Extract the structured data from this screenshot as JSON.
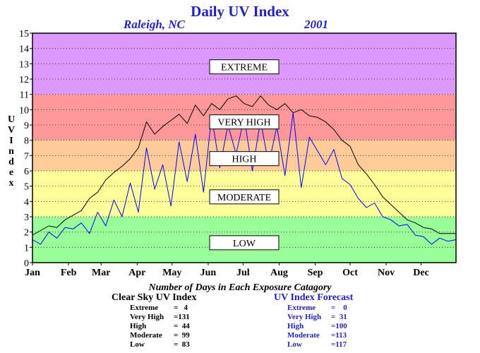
{
  "title": "Daily UV Index",
  "subtitle_location": "Raleigh, NC",
  "subtitle_year": "2001",
  "ylabel_letters": [
    "U",
    "V",
    "",
    "I",
    "n",
    "d",
    "e",
    "x"
  ],
  "caption": "Number of Days in Each Exposure Catagory",
  "colors": {
    "extreme": "#dd99ff",
    "very_high": "#ff9999",
    "high": "#ffcc99",
    "moderate": "#ffff99",
    "low": "#99ff99",
    "clear_sky_line": "#000000",
    "forecast_line": "#0000ff",
    "accent": "#1f1fd6"
  },
  "clear_sky_stats": {
    "title": "Clear Sky UV Index",
    "rows": [
      {
        "label": "Extreme",
        "value": "=   4"
      },
      {
        "label": "Very High",
        "value": "=131"
      },
      {
        "label": "High",
        "value": "=  44"
      },
      {
        "label": "Moderate",
        "value": "=  99"
      },
      {
        "label": "Low",
        "value": "=  83"
      }
    ]
  },
  "forecast_stats": {
    "title": "UV Index Forecast",
    "rows": [
      {
        "label": "Extreme",
        "value": "=    0"
      },
      {
        "label": "Very High",
        "value": "=  31"
      },
      {
        "label": "High",
        "value": "=100"
      },
      {
        "label": "Moderate",
        "value": "=113"
      },
      {
        "label": "Low",
        "value": "=117"
      }
    ]
  },
  "chart_data": {
    "type": "line",
    "title": "Daily UV Index",
    "subtitle": "Raleigh, NC 2001",
    "xlabel": "",
    "ylabel": "UV Index",
    "xlim": [
      1,
      365
    ],
    "ylim": [
      0,
      15
    ],
    "y_ticks": [
      0,
      1,
      2,
      3,
      4,
      5,
      6,
      7,
      8,
      9,
      10,
      11,
      12,
      13,
      14,
      15
    ],
    "month_labels": [
      "Jan",
      "Feb",
      "Mar",
      "Apr",
      "May",
      "Jun",
      "Jul",
      "Aug",
      "Sep",
      "Oct",
      "Nov",
      "Dec"
    ],
    "month_start_days": [
      1,
      32,
      60,
      91,
      121,
      152,
      182,
      213,
      244,
      274,
      305,
      335
    ],
    "grid": true,
    "bands": [
      {
        "name": "LOW",
        "from": 0,
        "to": 3
      },
      {
        "name": "MODERATE",
        "from": 3,
        "to": 6
      },
      {
        "name": "HIGH",
        "from": 6,
        "to": 8
      },
      {
        "name": "VERY HIGH",
        "from": 8,
        "to": 11
      },
      {
        "name": "EXTREME",
        "from": 11,
        "to": 15
      }
    ],
    "band_labels": [
      {
        "text": "EXTREME",
        "value": 12.8
      },
      {
        "text": "VERY HIGH",
        "value": 9.2
      },
      {
        "text": "HIGH",
        "value": 6.8
      },
      {
        "text": "MODERATE",
        "value": 4.3
      },
      {
        "text": "LOW",
        "value": 1.3
      }
    ],
    "series": [
      {
        "name": "Clear Sky UV Index",
        "x": [
          1,
          8,
          15,
          22,
          29,
          36,
          43,
          50,
          57,
          64,
          71,
          78,
          85,
          92,
          99,
          106,
          113,
          120,
          127,
          134,
          141,
          148,
          155,
          162,
          169,
          176,
          183,
          190,
          197,
          204,
          211,
          218,
          225,
          232,
          239,
          246,
          253,
          260,
          267,
          274,
          281,
          288,
          295,
          302,
          309,
          316,
          323,
          330,
          337,
          344,
          351,
          358,
          365
        ],
        "values": [
          1.8,
          2.1,
          2.4,
          2.3,
          2.8,
          3.1,
          3.4,
          4.2,
          4.6,
          5.4,
          5.9,
          6.3,
          6.8,
          7.5,
          9.2,
          8.4,
          8.9,
          9.3,
          9.7,
          9.1,
          10.3,
          9.6,
          10.4,
          10.0,
          10.7,
          10.9,
          10.4,
          10.2,
          10.9,
          10.3,
          10.0,
          10.4,
          9.8,
          10.0,
          9.6,
          9.5,
          9.2,
          8.7,
          8.0,
          7.6,
          6.4,
          5.8,
          5.1,
          4.3,
          3.8,
          3.3,
          2.8,
          2.6,
          2.3,
          2.2,
          1.9,
          1.9,
          1.9
        ]
      },
      {
        "name": "UV Index Forecast",
        "x": [
          1,
          8,
          15,
          22,
          29,
          36,
          43,
          50,
          57,
          64,
          71,
          78,
          85,
          92,
          99,
          106,
          113,
          120,
          127,
          134,
          141,
          148,
          155,
          162,
          169,
          176,
          183,
          190,
          197,
          204,
          211,
          218,
          225,
          232,
          239,
          246,
          253,
          260,
          267,
          274,
          281,
          288,
          295,
          302,
          309,
          316,
          323,
          330,
          337,
          344,
          351,
          358,
          365
        ],
        "values": [
          1.5,
          1.2,
          2.0,
          1.6,
          2.3,
          2.2,
          2.6,
          1.9,
          3.3,
          2.4,
          4.1,
          3.0,
          5.2,
          3.3,
          7.5,
          4.8,
          6.4,
          3.7,
          7.9,
          5.3,
          8.4,
          4.6,
          9.6,
          6.2,
          9.0,
          7.1,
          9.5,
          6.0,
          9.3,
          6.4,
          8.9,
          5.7,
          9.8,
          4.9,
          8.2,
          7.3,
          6.4,
          7.4,
          5.5,
          5.1,
          4.2,
          3.6,
          3.9,
          3.0,
          2.8,
          2.4,
          2.5,
          1.8,
          1.7,
          1.2,
          1.6,
          1.4,
          1.5
        ]
      }
    ]
  }
}
